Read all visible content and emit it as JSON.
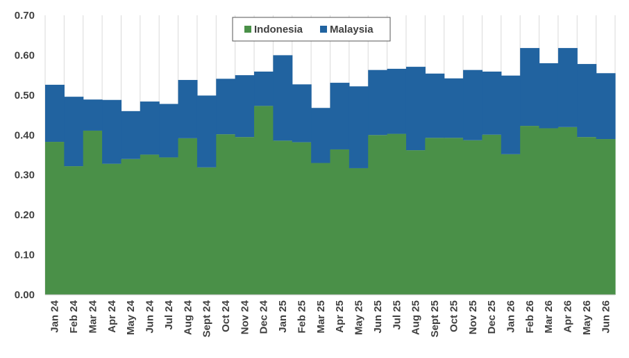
{
  "chart_data": {
    "type": "bar",
    "stacked": true,
    "title": "",
    "xlabel": "",
    "ylabel": "",
    "ylim": [
      0,
      0.7
    ],
    "yticks": [
      "0.00",
      "0.10",
      "0.20",
      "0.30",
      "0.40",
      "0.50",
      "0.60",
      "0.70"
    ],
    "grid": "vertical",
    "legend_position": "top-center",
    "categories": [
      "Jan 24",
      "Feb 24",
      "Mar 24",
      "Apr 24",
      "May 24",
      "Jun 24",
      "Jul 24",
      "Aug 24",
      "Sept 24",
      "Oct 24",
      "Nov 24",
      "Dec 24",
      "Jan 25",
      "Feb 25",
      "Mar 25",
      "Apr 25",
      "May 25",
      "Jun 25",
      "Jul 25",
      "Aug 25",
      "Sept 25",
      "Oct 25",
      "Nov 25",
      "Dec 25",
      "Jan 26",
      "Feb 26",
      "Mar 26",
      "Apr 26",
      "May 26",
      "Jun 26"
    ],
    "series": [
      {
        "name": "Indonesia",
        "color": "#4a9048",
        "values": [
          0.383,
          0.322,
          0.411,
          0.328,
          0.34,
          0.351,
          0.344,
          0.392,
          0.319,
          0.402,
          0.395,
          0.473,
          0.386,
          0.382,
          0.33,
          0.364,
          0.317,
          0.4,
          0.403,
          0.362,
          0.393,
          0.393,
          0.387,
          0.401,
          0.352,
          0.423,
          0.417,
          0.42,
          0.395,
          0.39
        ]
      },
      {
        "name": "Malaysia",
        "color": "#2163a0",
        "values": [
          0.143,
          0.174,
          0.078,
          0.16,
          0.12,
          0.133,
          0.134,
          0.146,
          0.18,
          0.139,
          0.155,
          0.086,
          0.214,
          0.145,
          0.138,
          0.167,
          0.205,
          0.163,
          0.163,
          0.209,
          0.161,
          0.149,
          0.176,
          0.158,
          0.197,
          0.195,
          0.163,
          0.198,
          0.183,
          0.165
        ]
      }
    ]
  }
}
